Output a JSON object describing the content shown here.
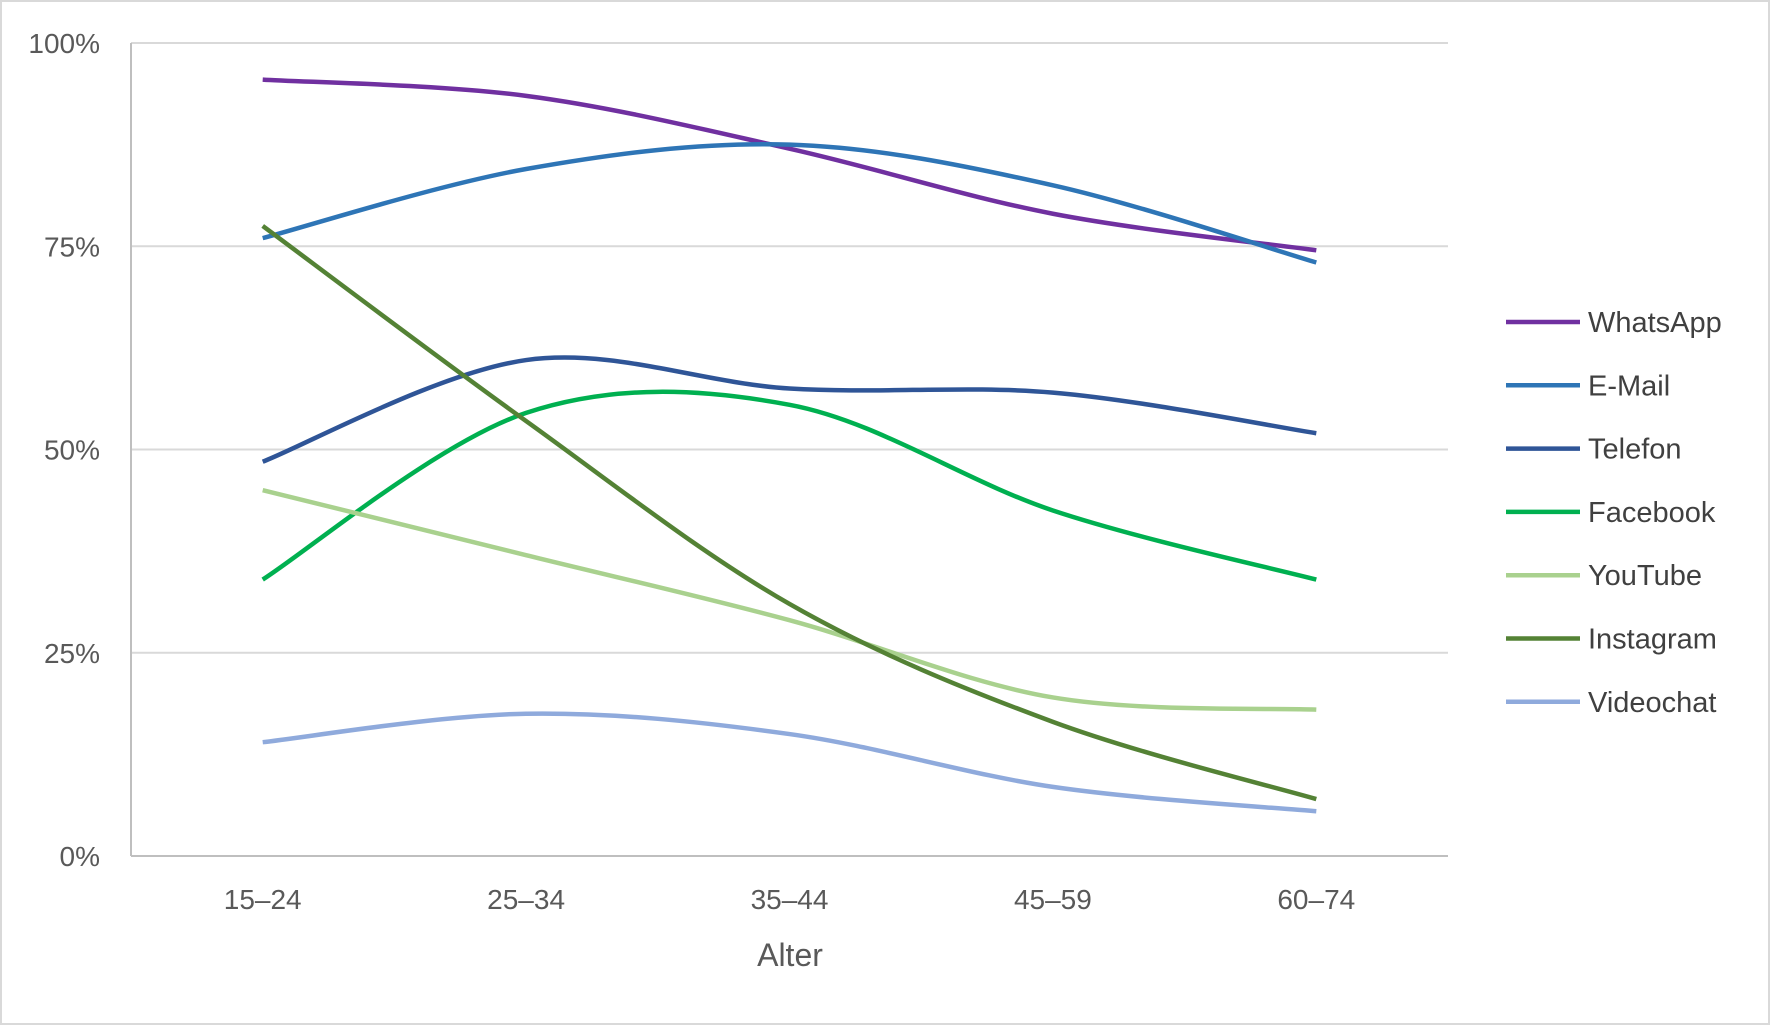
{
  "chart_data": {
    "type": "line",
    "title": "",
    "xlabel": "Alter",
    "ylabel": "",
    "categories": [
      "15–24",
      "25–34",
      "35–44",
      "45–59",
      "60–74"
    ],
    "ylim": [
      0,
      100
    ],
    "yticks": [
      0,
      25,
      50,
      75,
      100
    ],
    "ytick_labels": [
      "0%",
      "25%",
      "50%",
      "75%",
      "100%"
    ],
    "grid": true,
    "legend_position": "right",
    "smooth": true,
    "series": [
      {
        "name": "WhatsApp",
        "color": "#7030a0",
        "values": [
          95.5,
          93.5,
          87.0,
          79.0,
          74.5
        ]
      },
      {
        "name": "E-Mail",
        "color": "#2e75b6",
        "values": [
          76.0,
          84.5,
          87.5,
          82.5,
          73.0
        ]
      },
      {
        "name": "Telefon",
        "color": "#2f5597",
        "values": [
          48.5,
          61.0,
          57.5,
          57.0,
          52.0
        ]
      },
      {
        "name": "Facebook",
        "color": "#00b050",
        "values": [
          34.0,
          54.5,
          55.5,
          42.5,
          34.0
        ]
      },
      {
        "name": "YouTube",
        "color": "#a9d18e",
        "values": [
          45.0,
          37.0,
          29.0,
          19.5,
          18.0
        ]
      },
      {
        "name": "Instagram",
        "color": "#548235",
        "values": [
          77.5,
          53.5,
          31.0,
          16.5,
          7.0
        ]
      },
      {
        "name": "Videochat",
        "color": "#8faadc",
        "values": [
          14.0,
          17.5,
          15.0,
          8.5,
          5.5
        ]
      }
    ]
  }
}
